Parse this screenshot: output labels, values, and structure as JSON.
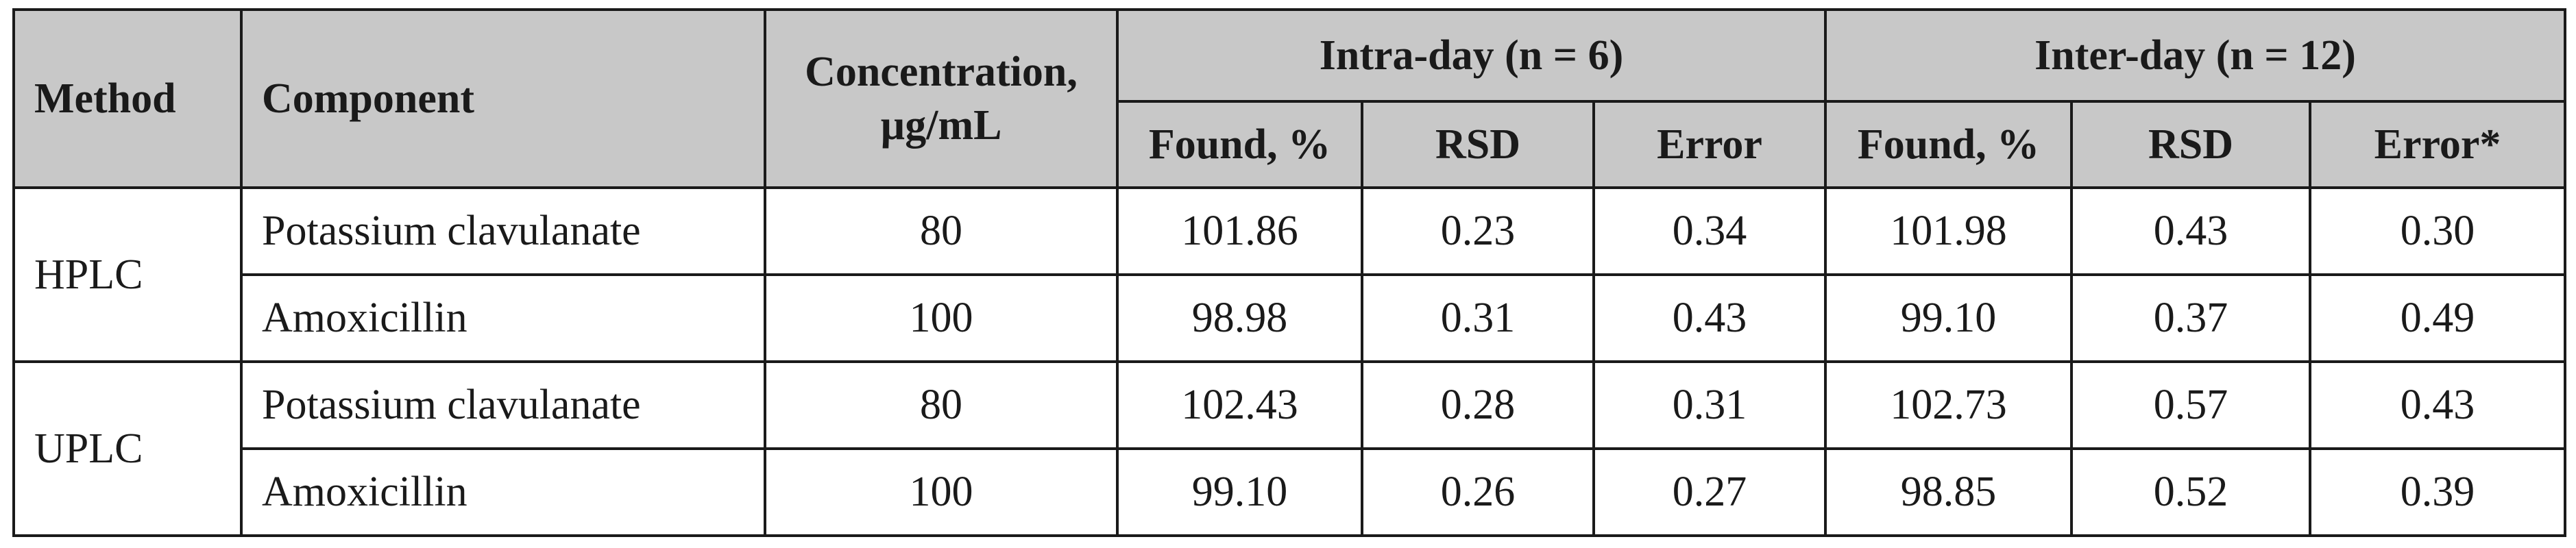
{
  "table": {
    "headers": {
      "method": "Method",
      "component": "Component",
      "concentration_line1": "Concentration,",
      "concentration_line2": "µg/mL",
      "intra_day": "Intra-day (n = 6)",
      "inter_day": "Inter-day (n = 12)",
      "intra_found": "Found, %",
      "intra_rsd": "RSD",
      "intra_error": "Error",
      "inter_found": "Found, %",
      "inter_rsd": "RSD",
      "inter_error": "Error*"
    },
    "groups": [
      {
        "method": "HPLC",
        "rows": [
          {
            "component": "Potassium clavulanate",
            "concentration": "80",
            "intra_found": "101.86",
            "intra_rsd": "0.23",
            "intra_error": "0.34",
            "inter_found": "101.98",
            "inter_rsd": "0.43",
            "inter_error": "0.30"
          },
          {
            "component": "Amoxicillin",
            "concentration": "100",
            "intra_found": "98.98",
            "intra_rsd": "0.31",
            "intra_error": "0.43",
            "inter_found": "99.10",
            "inter_rsd": "0.37",
            "inter_error": "0.49"
          }
        ]
      },
      {
        "method": "UPLC",
        "rows": [
          {
            "component": "Potassium clavulanate",
            "concentration": "80",
            "intra_found": "102.43",
            "intra_rsd": "0.28",
            "intra_error": "0.31",
            "inter_found": "102.73",
            "inter_rsd": "0.57",
            "inter_error": "0.43"
          },
          {
            "component": "Amoxicillin",
            "concentration": "100",
            "intra_found": "99.10",
            "intra_rsd": "0.26",
            "intra_error": "0.27",
            "inter_found": "98.85",
            "inter_rsd": "0.52",
            "inter_error": "0.39"
          }
        ]
      }
    ]
  }
}
